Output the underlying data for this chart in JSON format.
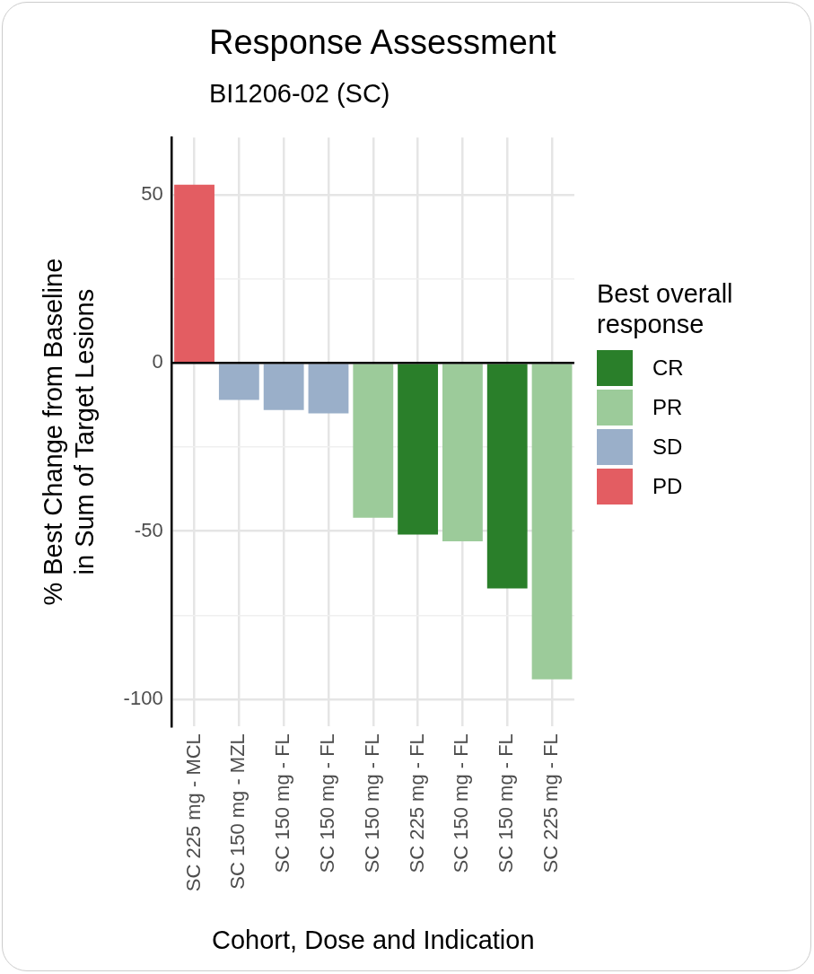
{
  "chart_data": {
    "type": "bar",
    "title": "Response Assessment",
    "subtitle": "BI1206-02 (SC)",
    "xlabel": "Cohort, Dose and Indication",
    "ylabel": "% Best Change from Baseline in Sum of Target Lesions",
    "legend_title": "Best overall response",
    "categories": [
      "SC 225 mg - MCL",
      "SC 150 mg - MZL",
      "SC 150 mg - FL",
      "SC 150 mg - FL",
      "SC 150 mg - FL",
      "SC 225 mg - FL",
      "SC 150 mg - FL",
      "SC 150 mg - FL",
      "SC 225 mg - FL"
    ],
    "series": [
      {
        "name": "CR",
        "color": "#2a7f2a",
        "values": [
          null,
          null,
          null,
          null,
          null,
          -51,
          null,
          -67,
          null
        ]
      },
      {
        "name": "PR",
        "color": "#9ccb9a",
        "values": [
          null,
          null,
          null,
          null,
          -46,
          null,
          -53,
          null,
          -94
        ]
      },
      {
        "name": "SD",
        "color": "#9aafc9",
        "values": [
          null,
          -11,
          -14,
          -15,
          null,
          null,
          null,
          null,
          null
        ]
      },
      {
        "name": "PD",
        "color": "#e35d62",
        "values": [
          53,
          null,
          null,
          null,
          null,
          null,
          null,
          null,
          null
        ]
      }
    ],
    "stacked": true,
    "ylim": [
      -108,
      67
    ],
    "yticks": [
      {
        "value": -100,
        "label": "-100"
      },
      {
        "value": -75,
        "label": null
      },
      {
        "value": -50,
        "label": "-50"
      },
      {
        "value": -25,
        "label": null
      },
      0,
      {
        "value": 25,
        "label": null
      },
      50
    ],
    "ref_lines": [
      {
        "axis": "y",
        "value": 0,
        "color": "#000000"
      }
    ],
    "grid": true,
    "legend": "right"
  }
}
